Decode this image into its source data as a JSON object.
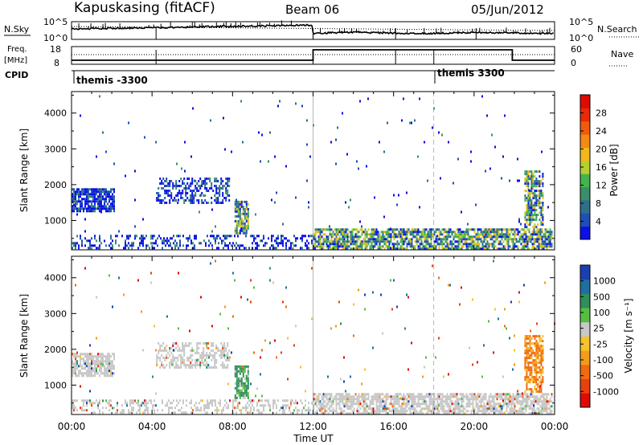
{
  "header": {
    "station": "Kapuskasing (fitACF)",
    "beam": "Beam 06",
    "date": "05/Jun/2012"
  },
  "summary": {
    "nsky_label": "N.Sky",
    "nsky_ticks": [
      "10^5",
      "10^0"
    ],
    "nsearch_label": "N.Search",
    "nsearch_ticks": [
      "10^5",
      "10^0"
    ],
    "freq_label_line1": "Freq.",
    "freq_label_line2": "[MHz]",
    "freq_ticks": [
      "18",
      "8"
    ],
    "nave_label": "Nave",
    "nave_ticks": [
      "60",
      "0"
    ],
    "cpid_label": "CPID",
    "cpid_events": [
      {
        "time_h": 0.0,
        "label": "themis -3300"
      },
      {
        "time_h": 18.0,
        "label": "themis 3300"
      }
    ]
  },
  "chart_data": [
    {
      "type": "heatmap",
      "name": "power",
      "xlabel": "Time UT",
      "ylabel": "Slant Range [km]",
      "x_ticks": [
        "00:00",
        "04:00",
        "08:00",
        "12:00",
        "16:00",
        "20:00",
        "00:00"
      ],
      "xlim": [
        0,
        24
      ],
      "y_ticks": [
        "1000",
        "2000",
        "3000",
        "4000"
      ],
      "ylim": [
        180,
        4600
      ],
      "colorbar": {
        "label": "Power [dB]",
        "ticks": [
          "4",
          "8",
          "12",
          "16",
          "20",
          "24",
          "28"
        ],
        "colors": [
          "#0b10e8",
          "#1f4fb4",
          "#2f6f8a",
          "#3a8f6a",
          "#44b54c",
          "#b6cf2f",
          "#f0b81c",
          "#f38a12",
          "#f05a0c",
          "#e82a06",
          "#e00a04"
        ]
      },
      "clusters": [
        {
          "t0": 0.0,
          "t1": 2.1,
          "r0": 1250,
          "r1": 1900,
          "density": 0.8,
          "dist": "low"
        },
        {
          "t0": 0.0,
          "t1": 12.1,
          "r0": 200,
          "r1": 600,
          "density": 0.35,
          "dist": "low"
        },
        {
          "t0": 4.2,
          "t1": 7.8,
          "r0": 1500,
          "r1": 2200,
          "density": 0.5,
          "dist": "low"
        },
        {
          "t0": 8.1,
          "t1": 8.8,
          "r0": 650,
          "r1": 1550,
          "density": 0.8,
          "dist": "mid"
        },
        {
          "t0": 12.0,
          "t1": 23.9,
          "r0": 190,
          "r1": 780,
          "density": 0.75,
          "dist": "mid"
        },
        {
          "t0": 22.5,
          "t1": 23.4,
          "r0": 800,
          "r1": 2400,
          "density": 0.7,
          "dist": "mid"
        },
        {
          "t0": 0.0,
          "t1": 24.0,
          "r0": 200,
          "r1": 4500,
          "density": 0.008,
          "dist": "low"
        }
      ]
    },
    {
      "type": "heatmap",
      "name": "velocity",
      "xlabel": "Time UT",
      "ylabel": "Slant Range [km]",
      "x_ticks": [
        "00:00",
        "04:00",
        "08:00",
        "12:00",
        "16:00",
        "20:00",
        "00:00"
      ],
      "xlim": [
        0,
        24
      ],
      "y_ticks": [
        "1000",
        "2000",
        "3000",
        "4000"
      ],
      "ylim": [
        180,
        4600
      ],
      "colorbar": {
        "label": "Velocity [m s⁻¹]",
        "ticks": [
          "1000",
          "500",
          "100",
          "25",
          "-25",
          "-100",
          "-500",
          "-1000"
        ],
        "colors": [
          "#1b3fb0",
          "#1f6fa0",
          "#2f8f5a",
          "#55c040",
          "#c8c8c8",
          "#f5c32a",
          "#f59b18",
          "#f06a10",
          "#e84010",
          "#e00a04"
        ]
      },
      "clusters": [
        {
          "t0": 0.0,
          "t1": 2.1,
          "r0": 1250,
          "r1": 1900,
          "density": 0.8,
          "dist": "grey"
        },
        {
          "t0": 0.0,
          "t1": 12.1,
          "r0": 200,
          "r1": 600,
          "density": 0.35,
          "dist": "grey"
        },
        {
          "t0": 4.2,
          "t1": 7.8,
          "r0": 1500,
          "r1": 2200,
          "density": 0.5,
          "dist": "grey"
        },
        {
          "t0": 8.1,
          "t1": 8.8,
          "r0": 650,
          "r1": 1550,
          "density": 0.8,
          "dist": "pos"
        },
        {
          "t0": 12.0,
          "t1": 23.9,
          "r0": 190,
          "r1": 780,
          "density": 0.75,
          "dist": "grey"
        },
        {
          "t0": 22.5,
          "t1": 23.4,
          "r0": 800,
          "r1": 2400,
          "density": 0.7,
          "dist": "neg"
        },
        {
          "t0": 0.0,
          "t1": 24.0,
          "r0": 200,
          "r1": 4500,
          "density": 0.008,
          "dist": "mix"
        }
      ]
    }
  ]
}
